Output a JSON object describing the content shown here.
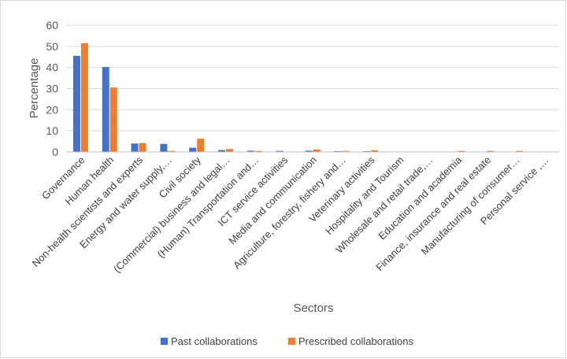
{
  "chart_data": {
    "type": "bar",
    "title": "",
    "xlabel": "Sectors",
    "ylabel": "Percentage",
    "ylim": [
      0,
      60
    ],
    "yticks": [
      0,
      10,
      20,
      30,
      40,
      50,
      60
    ],
    "grid": true,
    "legend_position": "bottom",
    "categories": [
      "Governance",
      "Human health",
      "Non-health scientists and experts",
      "Energy and water supply,…",
      "Civil society",
      "(Commercial) business and legal…",
      "(Human) Transportation and…",
      "ICT service activities",
      "Media and communication",
      "Agriculture, forestry, fishery and…",
      "Veterinary activities",
      "Hospitality and Tourism",
      "Wholesale and retail trade,…",
      "Education and academia",
      "Finance, insurance and real estate",
      "Manufacturing of consumer…",
      "Personal service ,…"
    ],
    "series": [
      {
        "name": "Past collaborations",
        "color": "#4472c4",
        "values": [
          45.5,
          40.2,
          4.0,
          3.8,
          2.0,
          0.9,
          0.6,
          0.5,
          0.6,
          0.4,
          0.4,
          0,
          0,
          0,
          0,
          0,
          0
        ]
      },
      {
        "name": "Prescribed collaborations",
        "color": "#ed7d31",
        "values": [
          51.5,
          30.5,
          4.2,
          0.5,
          6.3,
          1.4,
          0.5,
          0,
          1.2,
          0.5,
          0.8,
          0,
          0,
          0.5,
          0.5,
          0.5,
          0
        ]
      }
    ]
  }
}
